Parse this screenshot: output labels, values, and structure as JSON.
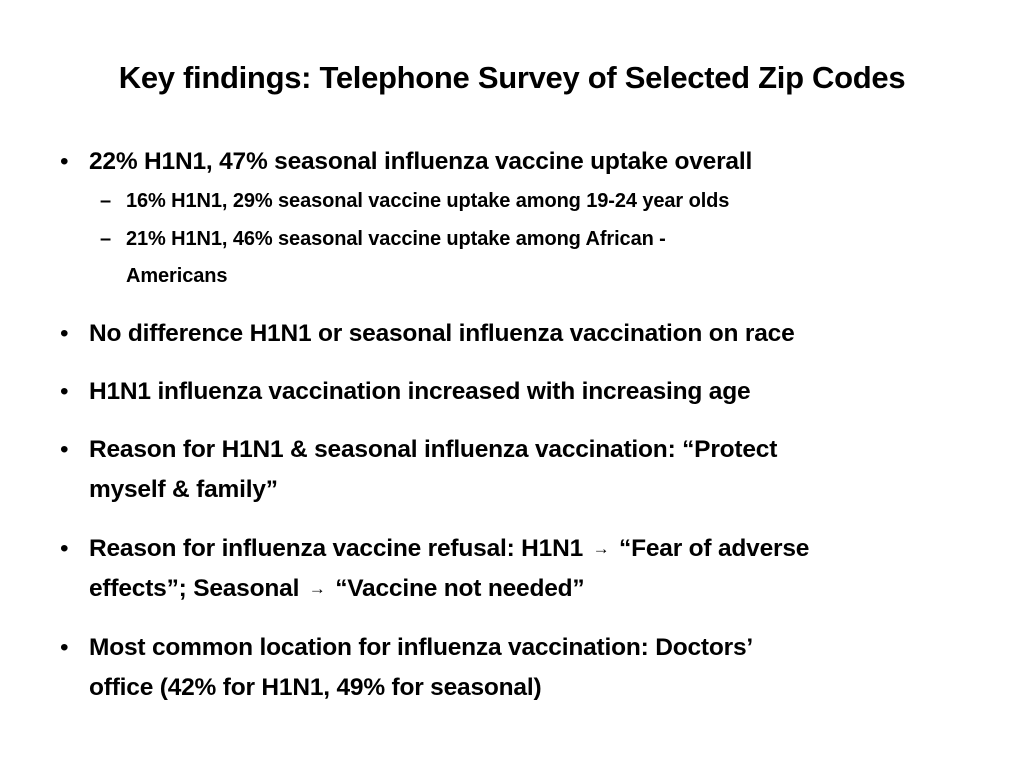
{
  "slide": {
    "title": "Key findings: Telephone Survey of Selected Zip Codes",
    "bullet_symbol": "•",
    "sub_bullet_symbol": "–",
    "arrow_symbol": "→",
    "bullets": [
      {
        "text": "22% H1N1, 47% seasonal influenza vaccine uptake overall",
        "sub": [
          {
            "text": "16% H1N1, 29% seasonal vaccine uptake among 19-24 year olds"
          },
          {
            "line1": "21% H1N1, 46% seasonal vaccine uptake among African -",
            "line2": "Americans"
          }
        ]
      },
      {
        "text": "No difference H1N1 or seasonal influenza vaccination on race"
      },
      {
        "text": "H1N1 influenza vaccination increased with increasing age"
      },
      {
        "line1": "Reason for H1N1 & seasonal influenza vaccination: “Protect",
        "line2": "myself & family”"
      },
      {
        "line1_a": "Reason for influenza vaccine refusal: H1N1",
        "line1_b": "“Fear of adverse",
        "line2_a": "effects”; Seasonal",
        "line2_b": "“Vaccine not needed”"
      },
      {
        "line1": "Most common location for influenza vaccination: Doctors’",
        "line2": "office (42% for H1N1, 49% for seasonal)"
      }
    ]
  }
}
